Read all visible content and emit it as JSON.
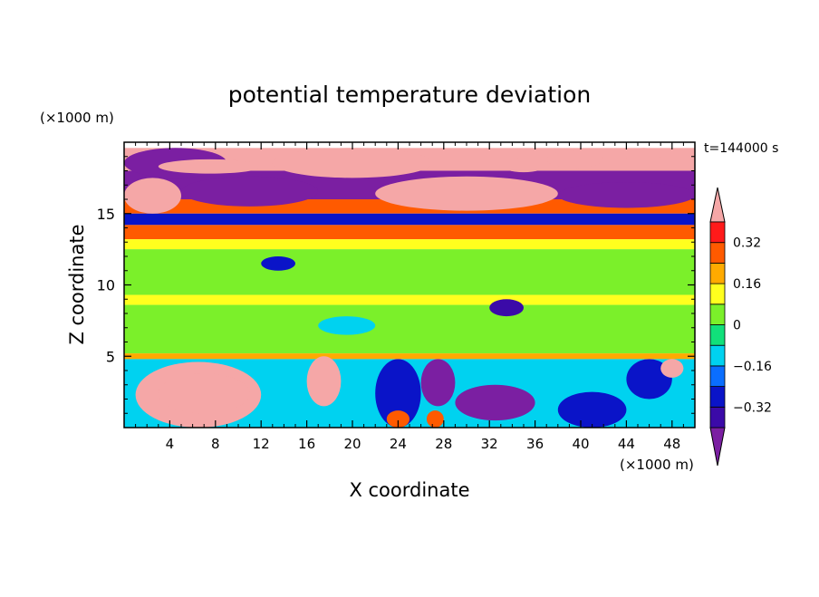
{
  "chart_data": {
    "type": "heatmap",
    "title": "potential temperature deviation",
    "xlabel": "X coordinate",
    "ylabel": "Z coordinate",
    "x_unit": "(×1000 m)",
    "y_unit": "(×1000 m)",
    "time_label": "t=144000 s",
    "xlim": [
      0,
      50
    ],
    "ylim": [
      0,
      20
    ],
    "x_ticks": [
      4,
      8,
      12,
      16,
      20,
      24,
      28,
      32,
      36,
      40,
      44,
      48
    ],
    "y_ticks": [
      5,
      10,
      15
    ],
    "colorbar": {
      "levels": [
        -0.4,
        -0.32,
        -0.24,
        -0.16,
        -0.08,
        0,
        0.08,
        0.16,
        0.24,
        0.32,
        0.4
      ],
      "labels": [
        "0.32",
        "0.16",
        "0",
        "−0.16",
        "−0.32"
      ],
      "label_values": [
        0.32,
        0.16,
        0,
        -0.16,
        -0.32
      ],
      "colors": [
        "#7b1fa2",
        "#3b0aa8",
        "#0a14c8",
        "#0a6eff",
        "#00d2f0",
        "#11e07a",
        "#7bf02a",
        "#ffff1e",
        "#ffaa00",
        "#ff5a00",
        "#ff1a1a",
        "#f5a7a7"
      ]
    },
    "bands": [
      {
        "z": [
          19.6,
          18.0
        ],
        "value": 0.45
      },
      {
        "z": [
          18.0,
          16.0
        ],
        "value": -0.42
      },
      {
        "z": [
          16.0,
          15.0
        ],
        "value": 0.25
      },
      {
        "z": [
          15.0,
          14.2
        ],
        "value": -0.3
      },
      {
        "z": [
          14.2,
          13.2
        ],
        "value": 0.3
      },
      {
        "z": [
          13.2,
          12.5
        ],
        "value": 0.12
      },
      {
        "z": [
          12.5,
          9.3
        ],
        "value": 0.03
      },
      {
        "z": [
          9.3,
          8.6
        ],
        "value": 0.14
      },
      {
        "z": [
          8.6,
          5.2
        ],
        "value": 0.0
      },
      {
        "z": [
          5.2,
          4.8
        ],
        "value": 0.2
      },
      {
        "z": [
          4.8,
          0.0
        ],
        "value": -0.15
      }
    ],
    "patches": [
      {
        "x": [
          0,
          9
        ],
        "z": [
          19.6,
          17.5
        ],
        "value": -0.45
      },
      {
        "x": [
          3,
          12
        ],
        "z": [
          18.8,
          17.8
        ],
        "value": 0.45
      },
      {
        "x": [
          13,
          27
        ],
        "z": [
          19.6,
          17.5
        ],
        "value": 0.45
      },
      {
        "x": [
          33,
          37
        ],
        "z": [
          18.9,
          17.9
        ],
        "value": 0.45
      },
      {
        "x": [
          37,
          42
        ],
        "z": [
          19.4,
          18.2
        ],
        "value": 0.45
      },
      {
        "x": [
          44,
          47
        ],
        "z": [
          19.6,
          18.0
        ],
        "value": 0.45
      },
      {
        "x": [
          0,
          5
        ],
        "z": [
          17.5,
          15.0
        ],
        "value": 0.45
      },
      {
        "x": [
          22,
          38
        ],
        "z": [
          17.6,
          15.2
        ],
        "value": 0.45
      },
      {
        "x": [
          5,
          17
        ],
        "z": [
          17.6,
          15.5
        ],
        "value": -0.42
      },
      {
        "x": [
          38,
          50
        ],
        "z": [
          17.2,
          15.4
        ],
        "value": -0.42
      },
      {
        "x": [
          32,
          35
        ],
        "z": [
          9.0,
          7.8
        ],
        "value": -0.35
      },
      {
        "x": [
          12,
          15
        ],
        "z": [
          12.0,
          11.0
        ],
        "value": -0.3
      },
      {
        "x": [
          17,
          22
        ],
        "z": [
          7.8,
          6.5
        ],
        "value": -0.1
      },
      {
        "x": [
          1,
          12
        ],
        "z": [
          4.6,
          0.0
        ],
        "value": 0.4
      },
      {
        "x": [
          3,
          11
        ],
        "z": [
          3.8,
          1.0
        ],
        "value": 0.45
      },
      {
        "x": [
          16,
          19
        ],
        "z": [
          5.0,
          1.5
        ],
        "value": 0.45
      },
      {
        "x": [
          22,
          26
        ],
        "z": [
          4.8,
          0.0
        ],
        "value": -0.32
      },
      {
        "x": [
          26,
          29
        ],
        "z": [
          4.8,
          1.5
        ],
        "value": -0.42
      },
      {
        "x": [
          29,
          36
        ],
        "z": [
          3.0,
          0.5
        ],
        "value": -0.42
      },
      {
        "x": [
          38,
          44
        ],
        "z": [
          2.5,
          0.0
        ],
        "value": -0.25
      },
      {
        "x": [
          44,
          48
        ],
        "z": [
          4.8,
          2.0
        ],
        "value": -0.32
      },
      {
        "x": [
          47,
          49
        ],
        "z": [
          4.8,
          3.5
        ],
        "value": 0.45
      },
      {
        "x": [
          23,
          25
        ],
        "z": [
          1.2,
          0.0
        ],
        "value": 0.25
      },
      {
        "x": [
          26.5,
          28
        ],
        "z": [
          1.2,
          0.0
        ],
        "value": 0.3
      }
    ]
  }
}
